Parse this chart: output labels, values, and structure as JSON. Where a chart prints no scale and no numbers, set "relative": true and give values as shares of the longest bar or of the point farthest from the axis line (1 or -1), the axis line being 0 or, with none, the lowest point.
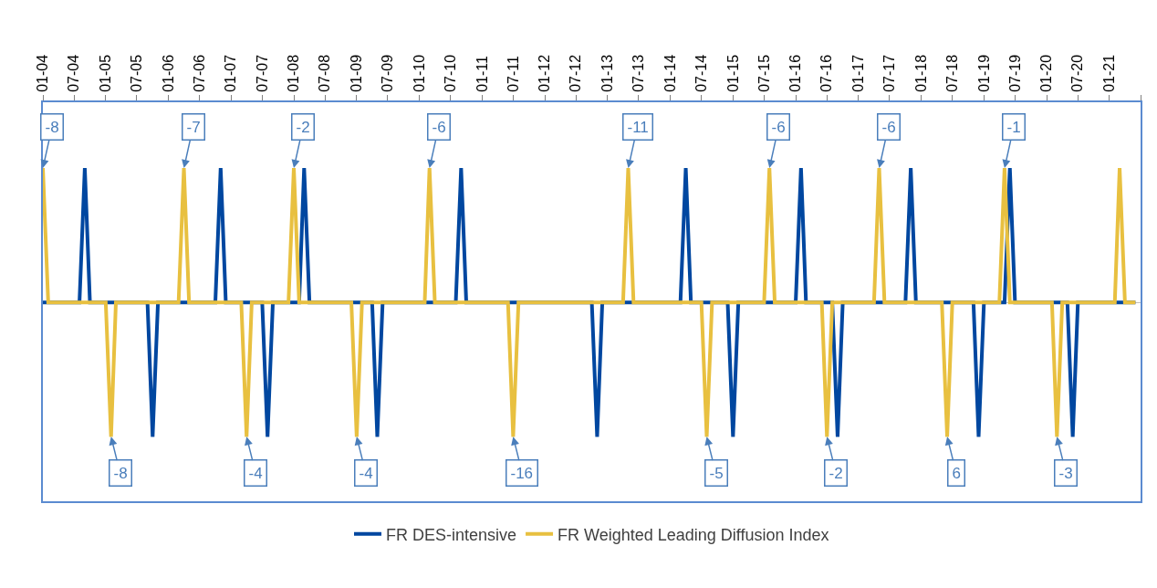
{
  "chart_data": {
    "type": "line",
    "relative": true,
    "xlim": [
      "2004-01",
      "2021-07"
    ],
    "xticks": [
      {
        "value": "2004-01",
        "label": "01-04"
      },
      {
        "value": "2004-07",
        "label": "07-04"
      },
      {
        "value": "2005-01",
        "label": "01-05"
      },
      {
        "value": "2005-07",
        "label": "07-05"
      },
      {
        "value": "2006-01",
        "label": "01-06"
      },
      {
        "value": "2006-07",
        "label": "07-06"
      },
      {
        "value": "2007-01",
        "label": "01-07"
      },
      {
        "value": "2007-07",
        "label": "07-07"
      },
      {
        "value": "2008-01",
        "label": "01-08"
      },
      {
        "value": "2008-07",
        "label": "07-08"
      },
      {
        "value": "2009-01",
        "label": "01-09"
      },
      {
        "value": "2009-07",
        "label": "07-09"
      },
      {
        "value": "2010-01",
        "label": "01-10"
      },
      {
        "value": "2010-07",
        "label": "07-10"
      },
      {
        "value": "2011-01",
        "label": "01-11"
      },
      {
        "value": "2011-07",
        "label": "07-11"
      },
      {
        "value": "2012-01",
        "label": "01-12"
      },
      {
        "value": "2012-07",
        "label": "07-12"
      },
      {
        "value": "2013-01",
        "label": "01-13"
      },
      {
        "value": "2013-07",
        "label": "07-13"
      },
      {
        "value": "2014-01",
        "label": "01-14"
      },
      {
        "value": "2014-07",
        "label": "07-14"
      },
      {
        "value": "2015-01",
        "label": "01-15"
      },
      {
        "value": "2015-07",
        "label": "07-15"
      },
      {
        "value": "2016-01",
        "label": "01-16"
      },
      {
        "value": "2016-07",
        "label": "07-16"
      },
      {
        "value": "2017-01",
        "label": "01-17"
      },
      {
        "value": "2017-07",
        "label": "07-17"
      },
      {
        "value": "2018-01",
        "label": "01-18"
      },
      {
        "value": "2018-07",
        "label": "07-18"
      },
      {
        "value": "2019-01",
        "label": "01-19"
      },
      {
        "value": "2019-07",
        "label": "07-19"
      },
      {
        "value": "2020-01",
        "label": "01-20"
      },
      {
        "value": "2020-07",
        "label": "07-20"
      },
      {
        "value": "2021-01",
        "label": "01-21"
      },
      {
        "value": "2021-07",
        "label": null
      }
    ],
    "series": [
      {
        "name": "FR DES-intensive",
        "color": "#0047a0",
        "x": [
          "2004-01",
          "2004-08",
          "2004-09",
          "2004-10",
          "2005-09",
          "2005-10",
          "2005-11",
          "2006-10",
          "2006-11",
          "2006-12",
          "2007-07",
          "2007-08",
          "2007-09",
          "2008-02",
          "2008-03",
          "2008-04",
          "2009-04",
          "2009-05",
          "2009-06",
          "2010-08",
          "2010-09",
          "2010-10",
          "2012-10",
          "2012-11",
          "2012-12",
          "2014-03",
          "2014-04",
          "2014-05",
          "2014-12",
          "2015-01",
          "2015-02",
          "2016-01",
          "2016-02",
          "2016-03",
          "2016-08",
          "2016-09",
          "2016-10",
          "2017-10",
          "2017-11",
          "2017-12",
          "2018-11",
          "2018-12",
          "2019-01",
          "2019-05",
          "2019-06",
          "2019-07",
          "2020-05",
          "2020-06",
          "2020-07",
          "2021-06"
        ],
        "values": [
          0,
          0,
          1,
          0,
          0,
          -1,
          0,
          0,
          1,
          0,
          0,
          -1,
          0,
          0,
          1,
          0,
          0,
          -1,
          0,
          0,
          1,
          0,
          0,
          -1,
          0,
          0,
          1,
          0,
          0,
          -1,
          0,
          0,
          1,
          0,
          0,
          -1,
          0,
          0,
          1,
          0,
          0,
          -1,
          0,
          0,
          1,
          0,
          0,
          -1,
          0,
          0
        ]
      },
      {
        "name": "FR Weighted Leading Diffusion Index",
        "color": "#e8c040",
        "x": [
          "2004-01",
          "2004-02",
          "2005-01",
          "2005-02",
          "2005-03",
          "2006-03",
          "2006-04",
          "2006-05",
          "2007-03",
          "2007-04",
          "2007-05",
          "2007-12",
          "2008-01",
          "2008-02",
          "2008-12",
          "2009-01",
          "2009-02",
          "2010-02",
          "2010-03",
          "2010-04",
          "2011-06",
          "2011-07",
          "2011-08",
          "2013-04",
          "2013-05",
          "2013-06",
          "2014-07",
          "2014-08",
          "2014-09",
          "2015-07",
          "2015-08",
          "2015-09",
          "2016-06",
          "2016-07",
          "2016-08",
          "2017-04",
          "2017-05",
          "2017-06",
          "2018-05",
          "2018-06",
          "2018-07",
          "2019-04",
          "2019-05",
          "2019-06",
          "2020-02",
          "2020-03",
          "2020-04",
          "2021-02",
          "2021-03",
          "2021-04",
          "2021-06"
        ],
        "values": [
          1,
          0,
          0,
          -1,
          0,
          0,
          1,
          0,
          0,
          -1,
          0,
          0,
          1,
          0,
          0,
          -1,
          0,
          0,
          1,
          0,
          0,
          -1,
          0,
          0,
          1,
          0,
          0,
          -1,
          0,
          0,
          1,
          0,
          0,
          -1,
          0,
          0,
          1,
          0,
          0,
          -1,
          0,
          0,
          1,
          0,
          0,
          -1,
          0,
          0,
          1,
          0,
          0
        ]
      }
    ],
    "annotations": [
      {
        "text": "-8",
        "x": "2004-01",
        "y": 1
      },
      {
        "text": "-8",
        "x": "2005-02",
        "y": -1
      },
      {
        "text": "-7",
        "x": "2006-04",
        "y": 1
      },
      {
        "text": "-4",
        "x": "2007-04",
        "y": -1
      },
      {
        "text": "-2",
        "x": "2008-01",
        "y": 1
      },
      {
        "text": "-4",
        "x": "2009-01",
        "y": -1
      },
      {
        "text": "-6",
        "x": "2010-03",
        "y": 1
      },
      {
        "text": "-16",
        "x": "2011-07",
        "y": -1
      },
      {
        "text": "-11",
        "x": "2013-05",
        "y": 1
      },
      {
        "text": "-5",
        "x": "2014-08",
        "y": -1
      },
      {
        "text": "-6",
        "x": "2015-08",
        "y": 1
      },
      {
        "text": "-2",
        "x": "2016-07",
        "y": -1
      },
      {
        "text": "-6",
        "x": "2017-05",
        "y": 1
      },
      {
        "text": "6",
        "x": "2018-06",
        "y": -1
      },
      {
        "text": "-1",
        "x": "2019-05",
        "y": 1
      },
      {
        "text": "-3",
        "x": "2020-03",
        "y": -1
      }
    ],
    "legend": "bottom",
    "marker": "none",
    "line_style": "solid"
  }
}
